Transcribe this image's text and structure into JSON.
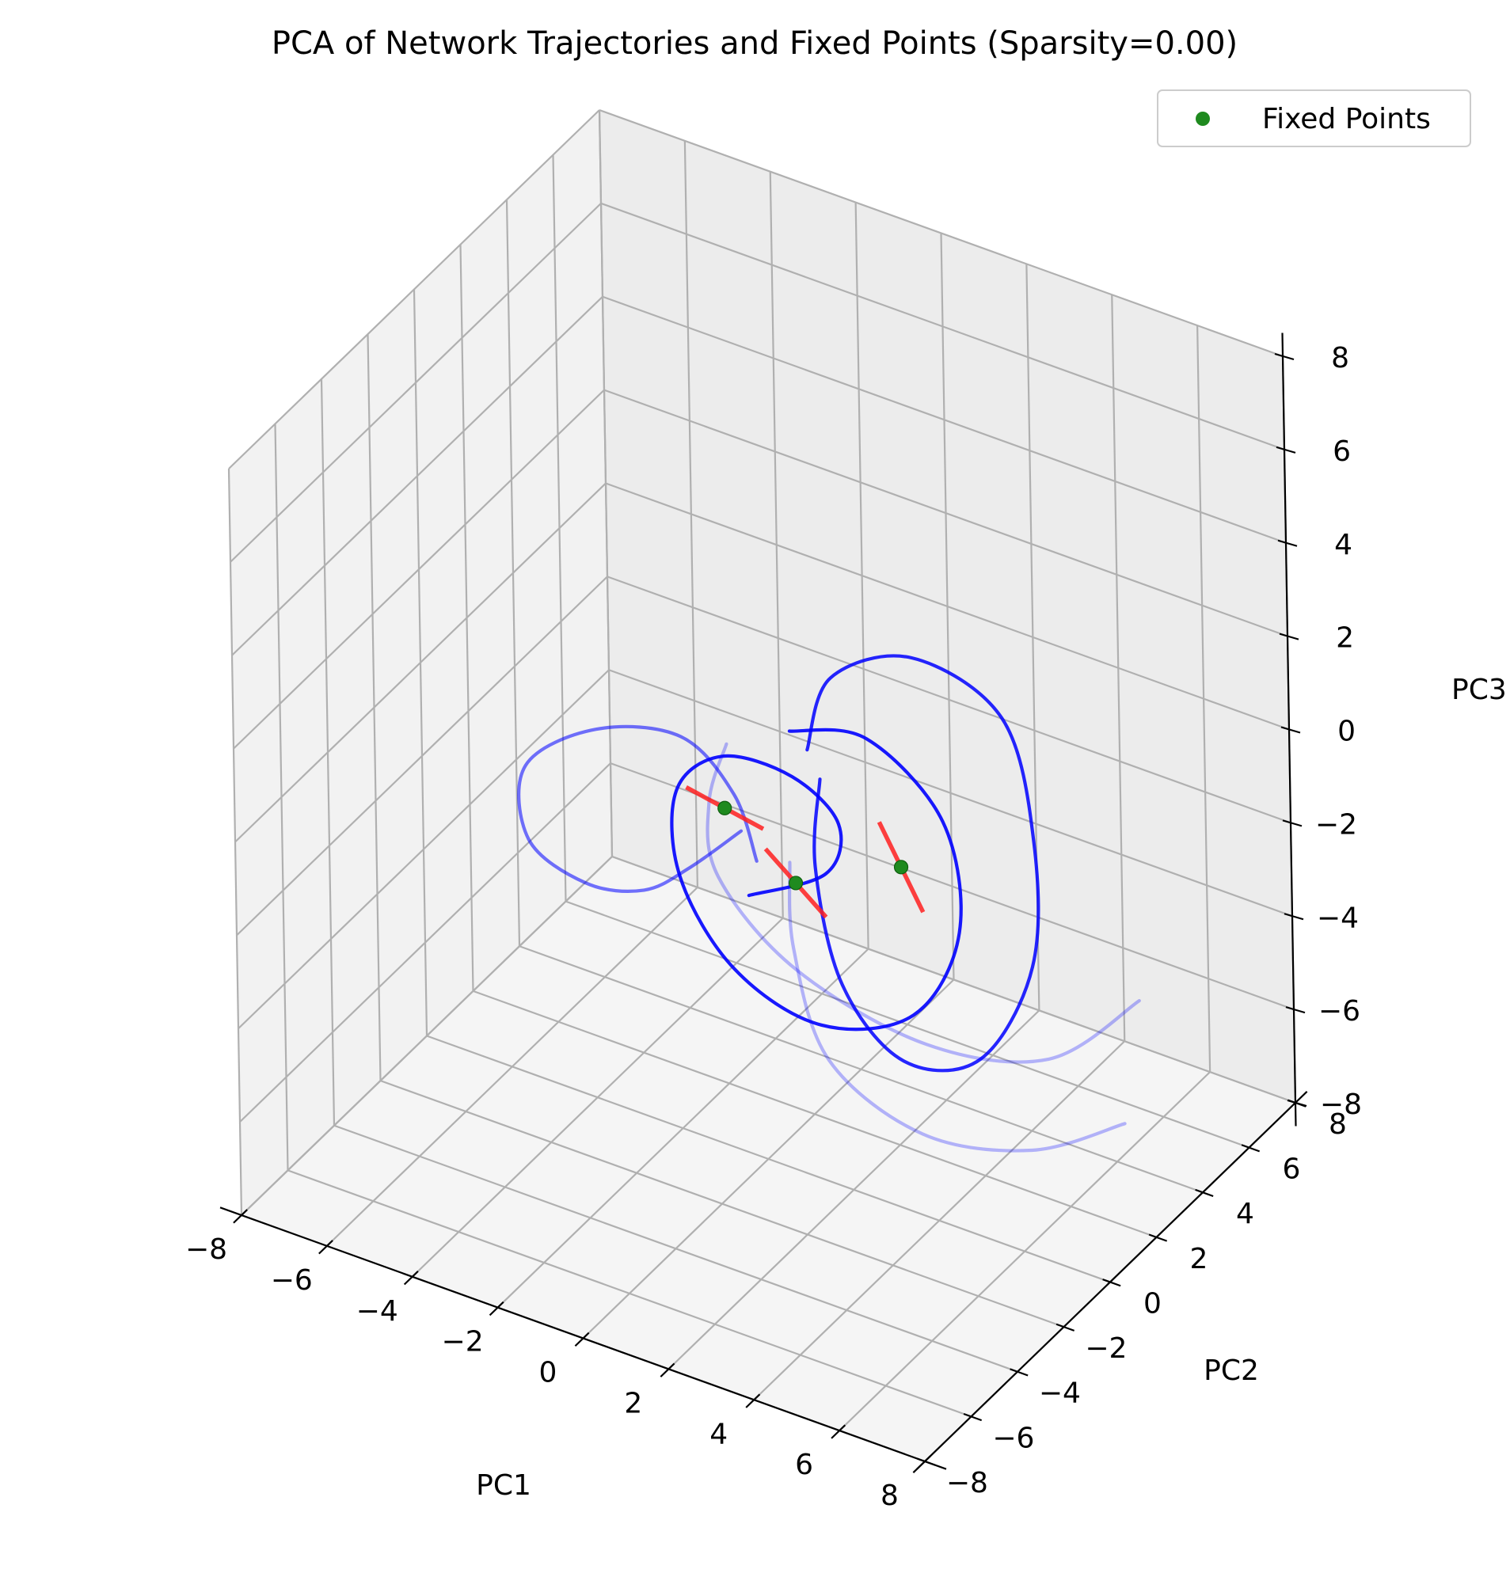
{
  "chart_data": {
    "type": "line3d",
    "title": "PCA of Network Trajectories and Fixed Points (Sparsity=0.00)",
    "xlabel": "PC1",
    "ylabel": "PC2",
    "zlabel": "PC3",
    "xlim": [
      -8,
      8
    ],
    "ylim": [
      -8,
      8
    ],
    "zlim": [
      -8,
      8
    ],
    "x_ticks": [
      "−8",
      "−6",
      "−4",
      "−2",
      "0",
      "2",
      "4",
      "6",
      "8"
    ],
    "y_ticks": [
      "−8",
      "−6",
      "−4",
      "−2",
      "0",
      "2",
      "4",
      "6",
      "8"
    ],
    "z_ticks": [
      "−8",
      "−6",
      "−4",
      "−2",
      "0",
      "2",
      "4",
      "6",
      "8"
    ],
    "grid": true,
    "legend": {
      "position": "top-right",
      "entries": [
        "Fixed Points"
      ]
    },
    "colors": {
      "trajectory": "#0000ff",
      "fixed_point": "#1f8a1f",
      "eigen_direction": "#ff2020",
      "pane_left": "#f2f2f2",
      "pane_right": "#ececec",
      "pane_floor": "#f5f5f5",
      "grid": "#b0b0b0"
    },
    "fixed_points": [
      {
        "x": -2.0,
        "y": 2.0,
        "z": -2.1
      },
      {
        "x": 0.2,
        "y": 1.0,
        "z": -2.5
      },
      {
        "x": 1.8,
        "y": 2.6,
        "z": -2.4
      }
    ],
    "eigen_segments": [
      {
        "from": {
          "x": -2.9,
          "y": 2.0,
          "z": -1.95
        },
        "to": {
          "x": -1.1,
          "y": 2.0,
          "z": -2.25
        }
      },
      {
        "from": {
          "x": -0.5,
          "y": 1.0,
          "z": -2.0
        },
        "to": {
          "x": 0.9,
          "y": 1.0,
          "z": -3.0
        }
      },
      {
        "from": {
          "x": 1.3,
          "y": 2.6,
          "z": -1.6
        },
        "to": {
          "x": 2.3,
          "y": 2.6,
          "z": -3.2
        }
      }
    ],
    "trajectories": [
      {
        "opacity": 0.55,
        "points": [
          [
            -0.6,
            0.8,
            -2.2
          ],
          [
            -1.5,
            1.5,
            -1.4
          ],
          [
            -3.0,
            2.0,
            -0.9
          ],
          [
            -5.0,
            2.0,
            -1.4
          ],
          [
            -6.4,
            1.5,
            -2.4
          ],
          [
            -5.8,
            0.5,
            -3.3
          ],
          [
            -4.3,
            0.2,
            -3.6
          ],
          [
            -3.1,
            0.5,
            -3.5
          ],
          [
            -2.3,
            1.0,
            -3.0
          ],
          [
            -1.4,
            1.6,
            -2.2
          ]
        ]
      },
      {
        "opacity": 0.9,
        "points": [
          [
            -0.8,
            0.8,
            -3.0
          ],
          [
            0.8,
            1.2,
            -2.2
          ],
          [
            0.9,
            1.6,
            -1.3
          ],
          [
            -0.4,
            2.0,
            -0.9
          ],
          [
            -2.2,
            2.3,
            -1.2
          ],
          [
            -3.3,
            2.3,
            -2.3
          ],
          [
            -2.8,
            1.5,
            -3.6
          ],
          [
            -1.0,
            0.5,
            -4.5
          ],
          [
            1.3,
            0.0,
            -4.7
          ],
          [
            3.2,
            0.5,
            -4.1
          ],
          [
            3.7,
            1.6,
            -2.7
          ],
          [
            2.8,
            2.6,
            -1.1
          ],
          [
            0.7,
            3.2,
            -0.3
          ],
          [
            -1.0,
            3.0,
            -0.6
          ]
        ]
      },
      {
        "opacity": 0.85,
        "points": [
          [
            -0.7,
            3.2,
            -1.0
          ],
          [
            -0.4,
            3.7,
            0.4
          ],
          [
            1.3,
            4.1,
            1.2
          ],
          [
            3.4,
            4.1,
            0.6
          ],
          [
            4.6,
            3.2,
            -1.2
          ],
          [
            5.3,
            1.8,
            -3.0
          ],
          [
            4.7,
            0.6,
            -4.6
          ],
          [
            3.0,
            0.4,
            -5.1
          ],
          [
            1.2,
            1.1,
            -4.4
          ],
          [
            0.0,
            2.2,
            -2.8
          ],
          [
            -0.3,
            3.0,
            -1.4
          ]
        ]
      },
      {
        "opacity": 0.28,
        "points": [
          [
            -2.6,
            3.2,
            -1.5
          ],
          [
            -2.7,
            2.6,
            -2.5
          ],
          [
            -1.9,
            1.5,
            -3.3
          ],
          [
            0.4,
            0.6,
            -4.1
          ],
          [
            3.6,
            0.3,
            -4.5
          ],
          [
            6.2,
            0.8,
            -4.2
          ],
          [
            7.8,
            1.8,
            -2.9
          ]
        ]
      },
      {
        "opacity": 0.28,
        "points": [
          [
            -0.1,
            1.3,
            -2.3
          ],
          [
            0.4,
            0.5,
            -3.6
          ],
          [
            1.8,
            -0.6,
            -5.0
          ],
          [
            4.2,
            -1.0,
            -5.6
          ],
          [
            6.6,
            -0.7,
            -5.3
          ],
          [
            8.3,
            0.2,
            -4.6
          ]
        ]
      }
    ]
  }
}
